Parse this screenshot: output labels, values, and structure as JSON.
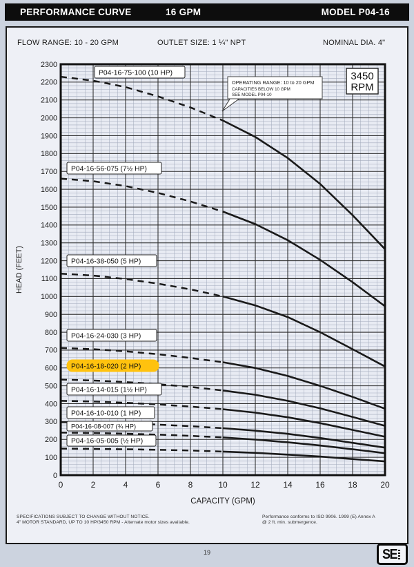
{
  "header": {
    "title": "PERFORMANCE CURVE",
    "flow": "16 GPM",
    "model": "MODEL  P04-16"
  },
  "info": {
    "flow_range": "FLOW RANGE: 10 - 20 GPM",
    "outlet_size": "OUTLET SIZE: 1 ¼\" NPT",
    "nominal_dia": "NOMINAL DIA. 4\""
  },
  "colors": {
    "curve": "#1a1a1a",
    "grid_minor": "#a3abbd",
    "grid_major": "#2b2b2b",
    "plot_border": "#111111",
    "highlight": "#ffc20e",
    "label_box_fill": "#ffffff",
    "plot_bg": "#e8ebf3"
  },
  "chart_data": {
    "type": "line",
    "title": "",
    "xlabel": "CAPACITY (GPM)",
    "ylabel": "HEAD (FEET)",
    "xlim": [
      0,
      20
    ],
    "ylim": [
      0,
      2300
    ],
    "x_major_step": 2,
    "x_minor_step": 0.5,
    "y_major_step": 100,
    "y_minor_step": 20,
    "grid": true,
    "x": [
      0,
      2,
      4,
      6,
      8,
      10,
      12,
      14,
      16,
      18,
      20
    ],
    "dashed_below_gpm": 10,
    "series": [
      {
        "label": "P04-16-75-100 (10 HP)",
        "hp": "10 HP",
        "highlighted": false,
        "values": [
          2230,
          2208,
          2172,
          2120,
          2058,
          1985,
          1893,
          1775,
          1630,
          1455,
          1265
        ]
      },
      {
        "label": "P04-16-56-075 (7½ HP)",
        "hp": "7½ HP",
        "highlighted": false,
        "values": [
          1660,
          1645,
          1618,
          1580,
          1532,
          1475,
          1405,
          1315,
          1205,
          1080,
          945
        ]
      },
      {
        "label": "P04-16-38-050 (5 HP)",
        "hp": "5 HP",
        "highlighted": false,
        "values": [
          1128,
          1117,
          1098,
          1072,
          1040,
          1000,
          950,
          885,
          800,
          705,
          608
        ]
      },
      {
        "label": "P04-16-24-030 (3 HP)",
        "hp": "3 HP",
        "highlighted": false,
        "values": [
          712,
          705,
          693,
          677,
          656,
          632,
          600,
          555,
          500,
          438,
          372
        ]
      },
      {
        "label": "P04-16-18-020 (2 HP)",
        "hp": "2 HP",
        "highlighted": true,
        "values": [
          535,
          530,
          521,
          509,
          494,
          474,
          450,
          416,
          374,
          326,
          276
        ]
      },
      {
        "label": "P04-16-14-015 (1½ HP)",
        "hp": "1½ HP",
        "highlighted": false,
        "values": [
          416,
          412,
          405,
          396,
          384,
          369,
          350,
          324,
          291,
          253,
          215
        ]
      },
      {
        "label": "P04-16-10-010 (1 HP)",
        "hp": "1 HP",
        "highlighted": false,
        "values": [
          297,
          294,
          289,
          283,
          274,
          263,
          249,
          231,
          208,
          181,
          154
        ]
      },
      {
        "label": "P04-16-08-007 (¾ HP)",
        "hp": "¾ HP",
        "highlighted": false,
        "values": [
          238,
          236,
          232,
          227,
          220,
          211,
          199,
          184,
          166,
          145,
          123
        ]
      },
      {
        "label": "P04-16-05-005 (½ HP)",
        "hp": "½ HP",
        "highlighted": false,
        "values": [
          149,
          147,
          145,
          142,
          138,
          132,
          125,
          115,
          104,
          90,
          77
        ]
      }
    ],
    "annotations": {
      "rpm_badge": {
        "line1": "3450",
        "line2": "RPM"
      },
      "callout": {
        "line1": "OPERATING RANGE: 10 to 20 GPM",
        "line2": "CAPACITIES BELOW 10 GPM",
        "line3": "SEE MODEL  P04-10"
      }
    }
  },
  "footer": {
    "spec_line1": "SPECIFICATIONS SUBJECT TO CHANGE WITHOUT NOTICE.",
    "spec_line2": "4\" MOTOR STANDARD, UP TO 10 HP/3450 RPM - Alternate motor sizes available.",
    "iso_line1": "Performance conforms to ISO 9906. 1999 (E) Annex A",
    "iso_line2": "@ 2 ft. min. submergence."
  },
  "page_number": "19",
  "logo_text": "SE"
}
